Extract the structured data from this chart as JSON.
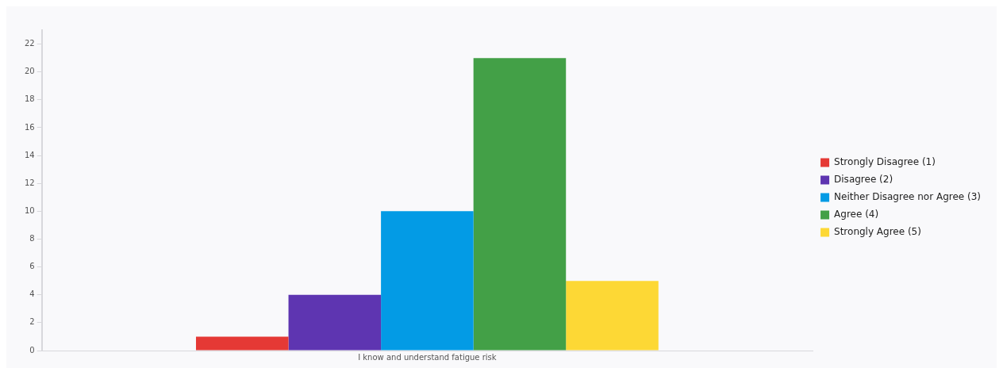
{
  "chart_data": {
    "type": "bar",
    "categories": [
      "I know and understand fatigue risk"
    ],
    "series": [
      {
        "name": "Strongly Disagree (1)",
        "color": "#e53935",
        "values": [
          1
        ]
      },
      {
        "name": "Disagree (2)",
        "color": "#5e35b1",
        "values": [
          4
        ]
      },
      {
        "name": "Neither Disagree nor Agree (3)",
        "color": "#039be5",
        "values": [
          10
        ]
      },
      {
        "name": "Agree (4)",
        "color": "#43a047",
        "values": [
          21
        ]
      },
      {
        "name": "Strongly Agree (5)",
        "color": "#fdd835",
        "values": [
          5
        ]
      }
    ],
    "ylim": [
      0,
      23
    ],
    "yticks": [
      0,
      2,
      4,
      6,
      8,
      10,
      12,
      14,
      16,
      18,
      20,
      22
    ],
    "grid": false,
    "legend": "right"
  }
}
